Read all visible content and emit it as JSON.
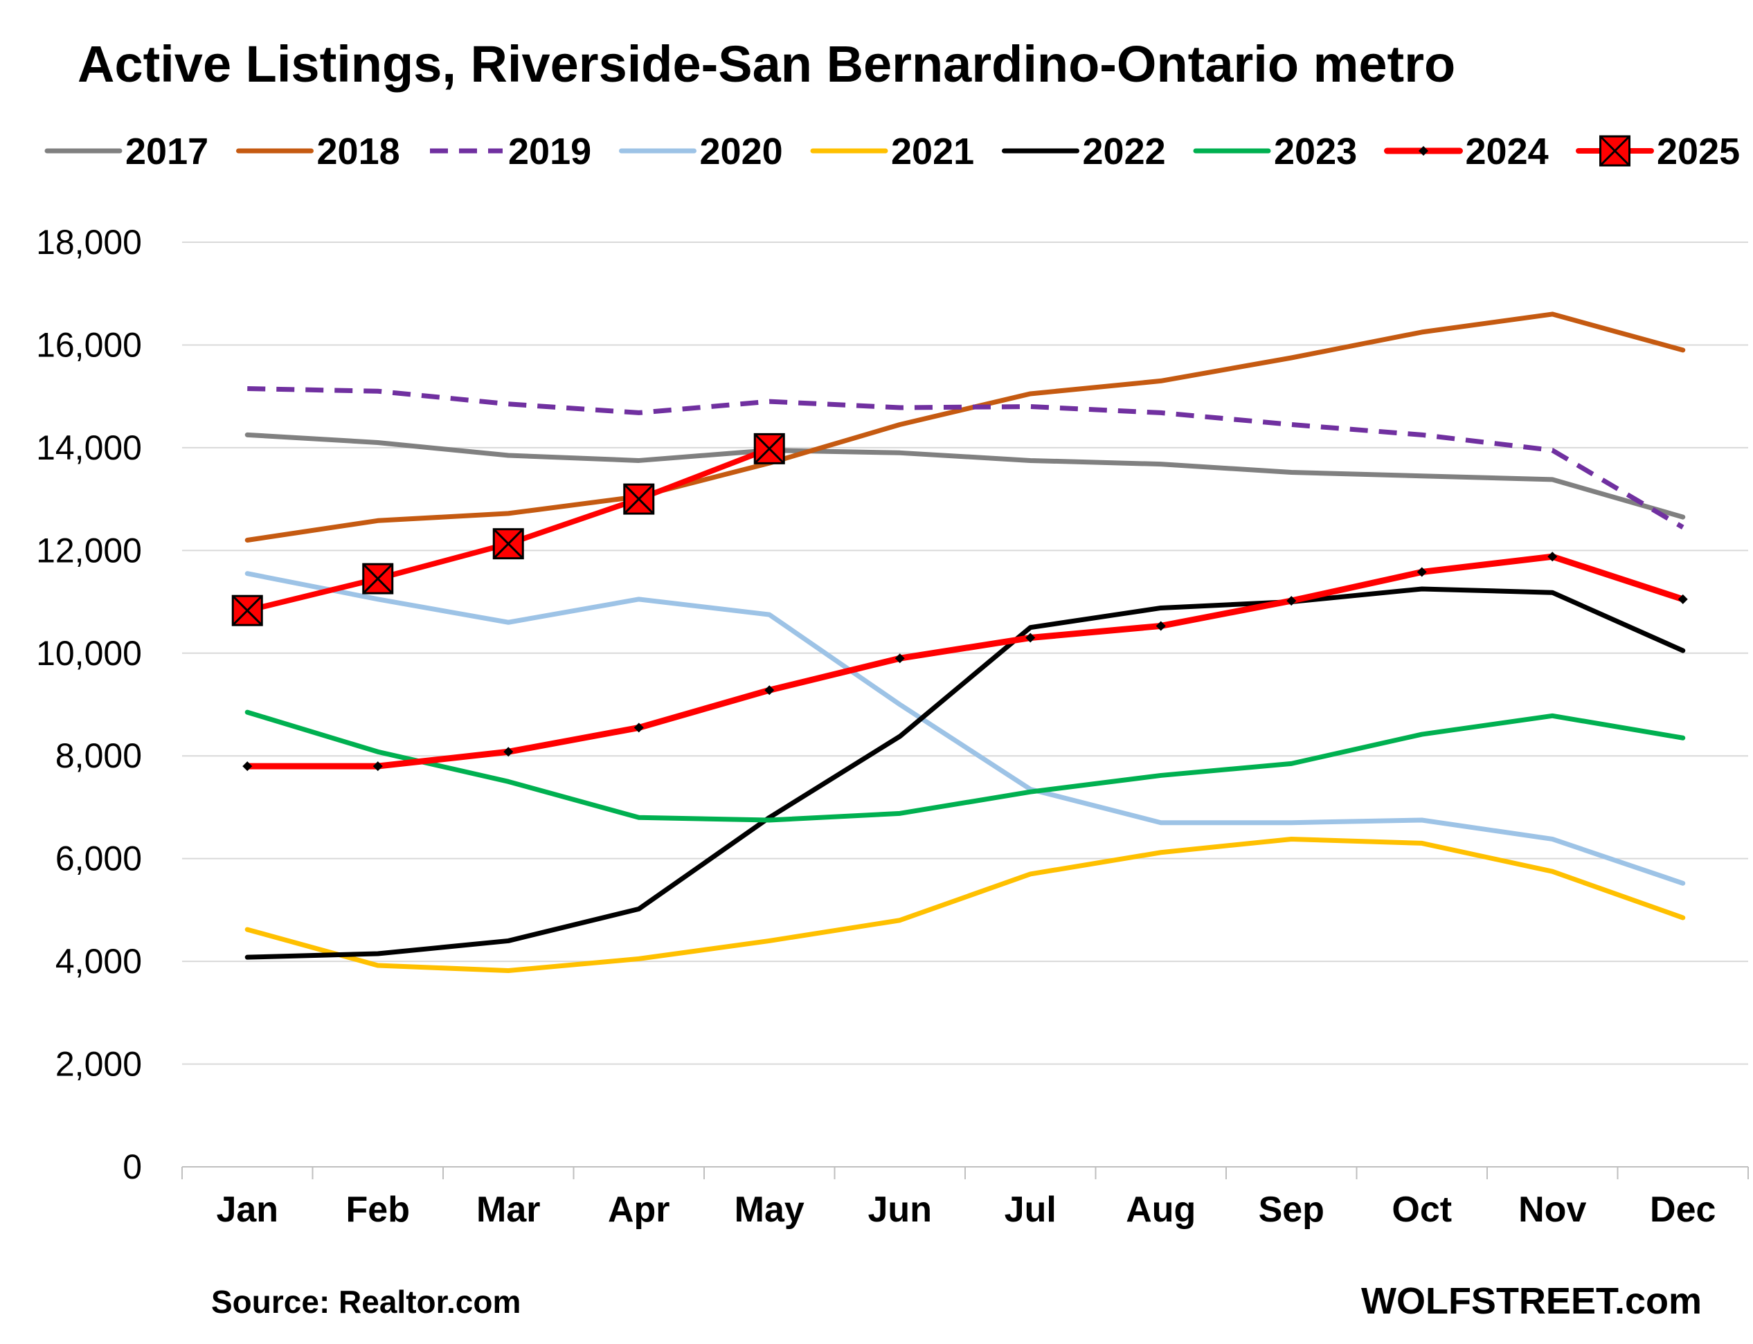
{
  "chart_data": {
    "type": "line",
    "title": "Active Listings, Riverside-San Bernardino-Ontario metro",
    "xlabel": "",
    "ylabel": "",
    "categories": [
      "Jan",
      "Feb",
      "Mar",
      "Apr",
      "May",
      "Jun",
      "Jul",
      "Aug",
      "Sep",
      "Oct",
      "Nov",
      "Dec"
    ],
    "ylim": [
      0,
      18000
    ],
    "yticks": [
      0,
      2000,
      4000,
      6000,
      8000,
      10000,
      12000,
      14000,
      16000,
      18000
    ],
    "ytick_labels": [
      "0",
      "2,000",
      "4,000",
      "6,000",
      "8,000",
      "10,000",
      "12,000",
      "14,000",
      "16,000",
      "18,000"
    ],
    "grid": "horizontal",
    "legend_position": "top",
    "series": [
      {
        "name": "2017",
        "color": "#808080",
        "style": "solid",
        "marker": "none",
        "values": [
          14250,
          14100,
          13850,
          13750,
          13950,
          13900,
          13750,
          13680,
          13520,
          13450,
          13380,
          12650
        ]
      },
      {
        "name": "2018",
        "color": "#C55A11",
        "style": "solid",
        "marker": "none",
        "values": [
          12200,
          12580,
          12720,
          13050,
          13700,
          14450,
          15050,
          15300,
          15750,
          16250,
          16600,
          15900
        ]
      },
      {
        "name": "2019",
        "color": "#7030A0",
        "style": "dashed",
        "marker": "none",
        "values": [
          15150,
          15100,
          14850,
          14680,
          14900,
          14780,
          14800,
          14680,
          14450,
          14250,
          13950,
          12450
        ]
      },
      {
        "name": "2020",
        "color": "#9DC3E6",
        "style": "solid",
        "marker": "none",
        "values": [
          11550,
          11050,
          10600,
          11050,
          10750,
          9000,
          7350,
          6700,
          6700,
          6750,
          6380,
          5520
        ]
      },
      {
        "name": "2021",
        "color": "#FFC000",
        "style": "solid",
        "marker": "none",
        "values": [
          4620,
          3920,
          3820,
          4050,
          4400,
          4800,
          5700,
          6120,
          6380,
          6300,
          5750,
          4850
        ]
      },
      {
        "name": "2022",
        "color": "#000000",
        "style": "solid",
        "marker": "none",
        "values": [
          4080,
          4150,
          4400,
          5020,
          6800,
          8380,
          10500,
          10880,
          11000,
          11250,
          11180,
          10050
        ]
      },
      {
        "name": "2023",
        "color": "#00B050",
        "style": "solid",
        "marker": "none",
        "values": [
          8850,
          8080,
          7500,
          6800,
          6750,
          6880,
          7300,
          7620,
          7850,
          8420,
          8780,
          8350
        ]
      },
      {
        "name": "2024",
        "color": "#FF0000",
        "style": "solid",
        "marker": "diamond",
        "values": [
          7800,
          7800,
          8080,
          8550,
          9280,
          9900,
          10300,
          10530,
          11020,
          11580,
          11880,
          11050
        ]
      },
      {
        "name": "2025",
        "color": "#FF0000",
        "style": "solid",
        "marker": "x-square",
        "values": [
          10830,
          11450,
          12130,
          13000,
          13980,
          null,
          null,
          null,
          null,
          null,
          null,
          null
        ]
      }
    ]
  },
  "footer": {
    "source": "Source: Realtor.com",
    "brand": "WOLFSTREET.com"
  }
}
